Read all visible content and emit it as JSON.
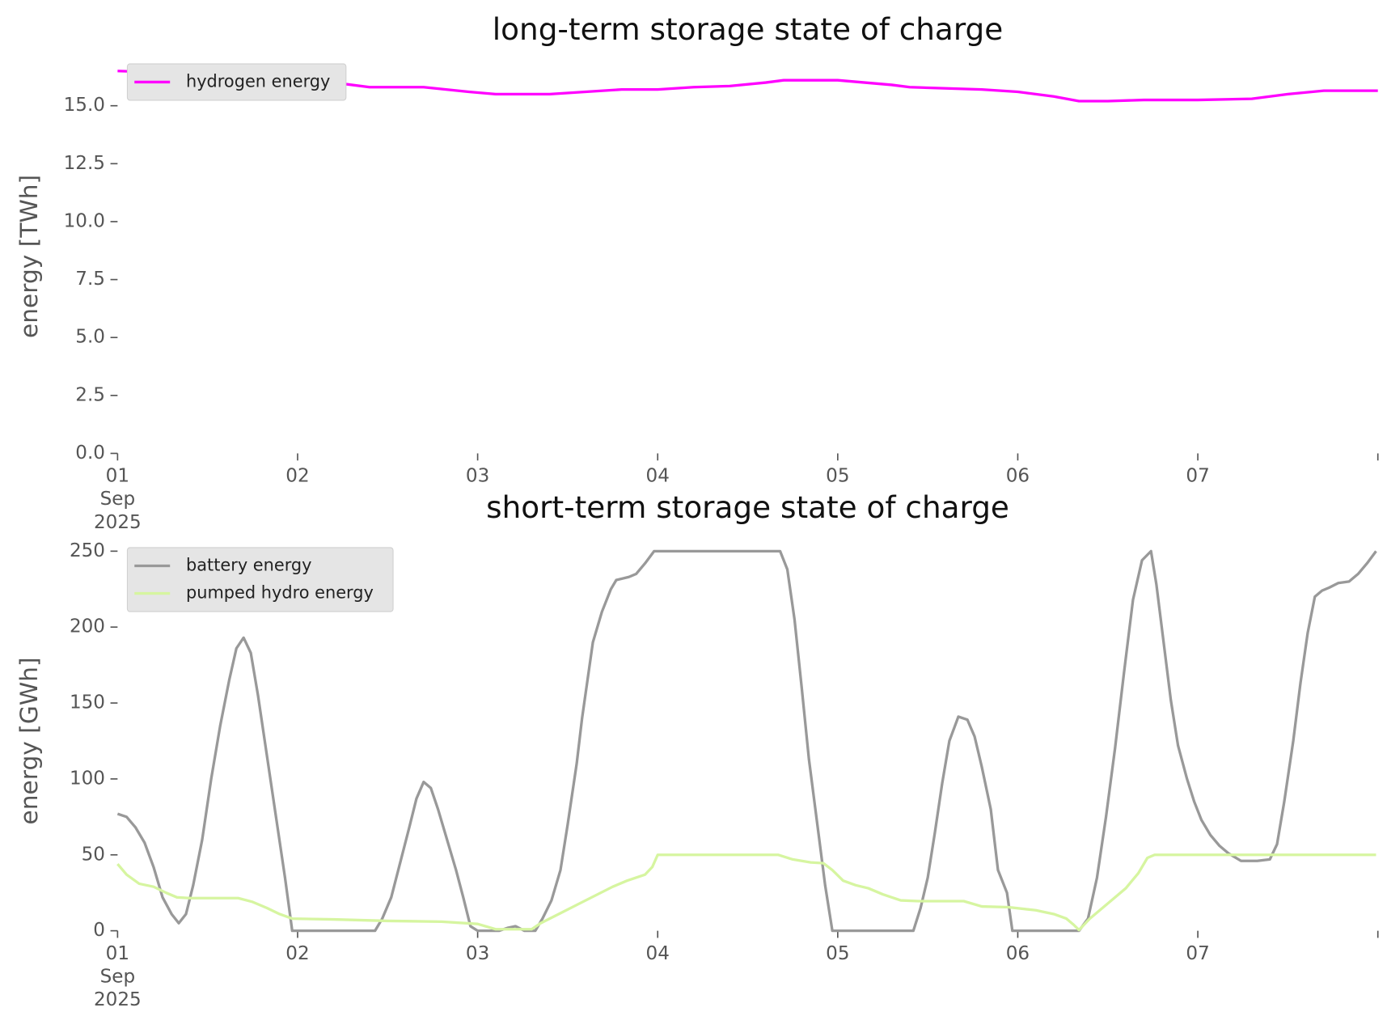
{
  "chart_data": [
    {
      "type": "line",
      "title": "long-term storage state of charge",
      "ylabel": "energy [TWh]",
      "xlim": [
        0,
        7
      ],
      "ylim": [
        0,
        17
      ],
      "legend": "upper left",
      "xticks": [
        {
          "value": 0,
          "label": "01\nSep\n2025"
        },
        {
          "value": 1,
          "label": "02"
        },
        {
          "value": 2,
          "label": "03"
        },
        {
          "value": 3,
          "label": "04"
        },
        {
          "value": 4,
          "label": "05"
        },
        {
          "value": 5,
          "label": "06"
        },
        {
          "value": 6,
          "label": "07"
        },
        {
          "value": 7,
          "label": null
        }
      ],
      "yticks": [
        {
          "value": 0,
          "label": "0.0"
        },
        2.5,
        {
          "value": 5,
          "label": "5.0"
        },
        7.5,
        {
          "value": 10,
          "label": "10.0"
        },
        12.5,
        {
          "value": 15,
          "label": "15.0"
        }
      ],
      "series": [
        {
          "name": "hydrogen energy",
          "color": "#ff00ff",
          "x": [
            0,
            0.4,
            0.8,
            1.0,
            1.2,
            1.4,
            1.7,
            1.95,
            2.1,
            2.4,
            2.6,
            2.8,
            3.0,
            3.2,
            3.4,
            3.6,
            3.7,
            4.0,
            4.3,
            4.4,
            4.8,
            5.0,
            5.2,
            5.34,
            5.5,
            5.7,
            6.0,
            6.3,
            6.5,
            6.7,
            7.0
          ],
          "values": [
            16.5,
            16.4,
            16.3,
            16.2,
            16.0,
            15.8,
            15.8,
            15.6,
            15.5,
            15.5,
            15.6,
            15.7,
            15.7,
            15.8,
            15.85,
            16.0,
            16.1,
            16.1,
            15.9,
            15.8,
            15.7,
            15.6,
            15.4,
            15.2,
            15.2,
            15.25,
            15.25,
            15.3,
            15.5,
            15.65,
            15.65
          ]
        }
      ]
    },
    {
      "type": "line",
      "title": "short-term storage state of charge",
      "ylabel": "energy [GWh]",
      "xlim": [
        0,
        7
      ],
      "ylim": [
        0,
        250
      ],
      "legend": "upper left",
      "xticks": [
        {
          "value": 0,
          "label": "01\nSep\n2025"
        },
        {
          "value": 1,
          "label": "02"
        },
        {
          "value": 2,
          "label": "03"
        },
        {
          "value": 3,
          "label": "04"
        },
        {
          "value": 4,
          "label": "05"
        },
        {
          "value": 5,
          "label": "06"
        },
        {
          "value": 6,
          "label": "07"
        },
        {
          "value": 7,
          "label": null
        }
      ],
      "yticks": [
        0,
        50,
        100,
        150,
        200,
        250
      ],
      "series": [
        {
          "name": "battery energy",
          "color": "#999999",
          "x": [
            0,
            0.05,
            0.1,
            0.15,
            0.2,
            0.25,
            0.3,
            0.34,
            0.38,
            0.42,
            0.47,
            0.52,
            0.57,
            0.62,
            0.66,
            0.7,
            0.74,
            0.78,
            0.83,
            0.88,
            0.93,
            0.97,
            1.43,
            1.47,
            1.52,
            1.57,
            1.62,
            1.66,
            1.7,
            1.74,
            1.78,
            1.83,
            1.88,
            1.92,
            1.96,
            2.0,
            2.12,
            2.17,
            2.21,
            2.26,
            2.32,
            2.36,
            2.41,
            2.46,
            2.5,
            2.55,
            2.58,
            2.64,
            2.69,
            2.74,
            2.77,
            2.84,
            2.88,
            2.93,
            2.98,
            3.68,
            3.72,
            3.76,
            3.8,
            3.84,
            3.89,
            3.93,
            3.97,
            4.42,
            4.46,
            4.5,
            4.54,
            4.58,
            4.62,
            4.67,
            4.72,
            4.76,
            4.8,
            4.85,
            4.89,
            4.94,
            4.97,
            5.34,
            5.39,
            5.44,
            5.49,
            5.54,
            5.59,
            5.64,
            5.69,
            5.74,
            5.77,
            5.81,
            5.85,
            5.89,
            5.94,
            5.98,
            6.02,
            6.07,
            6.12,
            6.17,
            6.24,
            6.33,
            6.4,
            6.44,
            6.48,
            6.53,
            6.57,
            6.61,
            6.65,
            6.69,
            6.73,
            6.78,
            6.84,
            6.89,
            6.94,
            6.99
          ],
          "values": [
            77,
            75,
            68,
            58,
            42,
            22,
            11,
            5,
            11,
            30,
            60,
            100,
            135,
            165,
            186,
            193,
            183,
            155,
            115,
            75,
            35,
            0,
            0,
            8,
            22,
            45,
            68,
            87,
            98,
            94,
            80,
            60,
            40,
            22,
            3,
            0,
            0,
            2,
            3,
            0,
            0,
            8,
            20,
            40,
            70,
            110,
            140,
            190,
            210,
            225,
            231,
            233,
            235,
            242,
            250,
            250,
            238,
            205,
            160,
            113,
            67,
            30,
            0,
            0,
            15,
            35,
            65,
            97,
            125,
            141,
            139,
            128,
            108,
            80,
            40,
            25,
            0,
            0,
            8,
            35,
            75,
            120,
            170,
            218,
            244,
            250,
            228,
            190,
            152,
            122,
            100,
            85,
            73,
            63,
            56,
            51,
            46,
            46,
            47,
            57,
            85,
            125,
            163,
            196,
            220,
            224,
            226,
            229,
            230,
            235,
            242,
            250
          ]
        },
        {
          "name": "pumped hydro energy",
          "color": "#d6f5a0",
          "x": [
            0,
            0.05,
            0.12,
            0.2,
            0.27,
            0.33,
            0.4,
            0.55,
            0.67,
            0.75,
            0.83,
            0.9,
            0.97,
            1.2,
            1.5,
            1.8,
            2.0,
            2.1,
            2.3,
            2.35,
            2.45,
            2.55,
            2.65,
            2.75,
            2.83,
            2.88,
            2.93,
            2.97,
            3.0,
            3.67,
            3.75,
            3.85,
            3.92,
            3.97,
            4.03,
            4.1,
            4.17,
            4.25,
            4.35,
            4.45,
            4.7,
            4.8,
            4.95,
            5.1,
            5.2,
            5.27,
            5.31,
            5.34,
            5.4,
            5.5,
            5.6,
            5.67,
            5.72,
            5.76,
            6.99
          ],
          "values": [
            44,
            37,
            31,
            29,
            25,
            22,
            21.5,
            21.5,
            21.5,
            19,
            15,
            11,
            8,
            7.5,
            6.5,
            6,
            4.5,
            1,
            1,
            5,
            11,
            17,
            23,
            29,
            33,
            35,
            37,
            42,
            50,
            50,
            47,
            45,
            44.5,
            40,
            33,
            30,
            28,
            24,
            20,
            19.5,
            19.5,
            16,
            15.5,
            13.5,
            11,
            8,
            4,
            0.5,
            8,
            18,
            28,
            38,
            48,
            50,
            50
          ]
        }
      ]
    }
  ]
}
